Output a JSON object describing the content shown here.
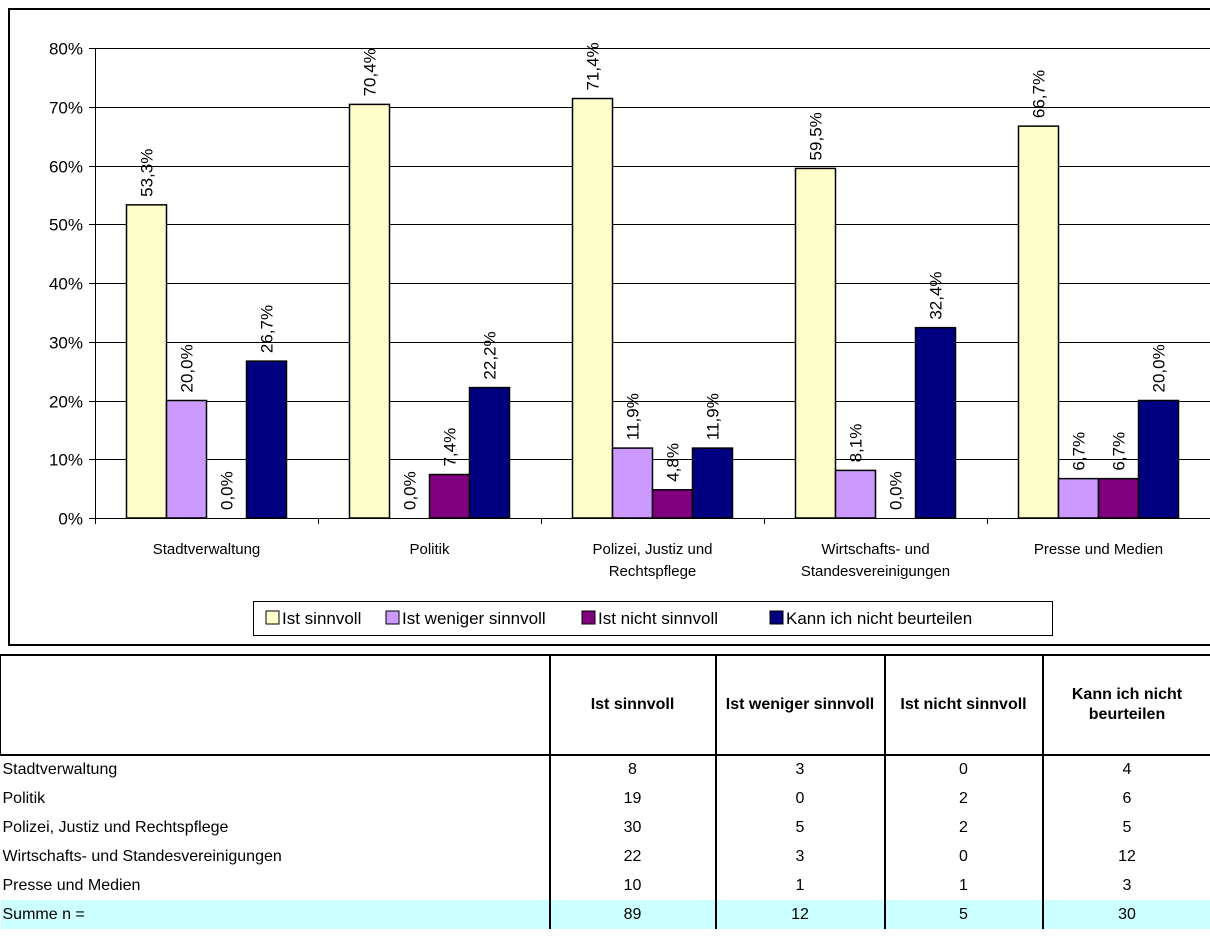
{
  "chart_data": {
    "type": "bar",
    "categories": [
      "Stadtverwaltung",
      "Politik",
      "Polizei, Justiz und Rechtspflege",
      "Wirtschafts- und Standesvereinigungen",
      "Presse und Medien"
    ],
    "category_label_lines": [
      [
        "Stadtverwaltung"
      ],
      [
        "Politik"
      ],
      [
        "Polizei, Justiz und",
        "Rechtspflege"
      ],
      [
        "Wirtschafts- und",
        "Standesvereinigungen"
      ],
      [
        "Presse und Medien"
      ]
    ],
    "series": [
      {
        "name": "Ist sinnvoll",
        "color": "#ffffcc",
        "values": [
          53.3,
          70.4,
          71.4,
          59.5,
          66.7
        ],
        "labels": [
          "53,3%",
          "70,4%",
          "71,4%",
          "59,5%",
          "66,7%"
        ]
      },
      {
        "name": "Ist weniger sinnvoll",
        "color": "#cc99ff",
        "values": [
          20.0,
          0.0,
          11.9,
          8.1,
          6.7
        ],
        "labels": [
          "20,0%",
          "0,0%",
          "11,9%",
          "8,1%",
          "6,7%"
        ]
      },
      {
        "name": "Ist nicht sinnvoll",
        "color": "#800080",
        "values": [
          0.0,
          7.4,
          4.8,
          0.0,
          6.7
        ],
        "labels": [
          "0,0%",
          "7,4%",
          "4,8%",
          "0,0%",
          "6,7%"
        ]
      },
      {
        "name": "Kann ich nicht beurteilen",
        "color": "#000080",
        "values": [
          26.7,
          22.2,
          11.9,
          32.4,
          20.0
        ],
        "labels": [
          "26,7%",
          "22,2%",
          "11,9%",
          "32,4%",
          "20,0%"
        ]
      }
    ],
    "yticks": [
      "0%",
      "10%",
      "20%",
      "30%",
      "40%",
      "50%",
      "60%",
      "70%",
      "80%"
    ],
    "ylim": [
      0,
      80
    ],
    "grid": true,
    "legend_position": "bottom"
  },
  "table": {
    "headers": [
      "",
      "Ist sinnvoll",
      "Ist weniger sinnvoll",
      "Ist nicht sinnvoll",
      "Kann ich nicht beurteilen"
    ],
    "rows": [
      {
        "label": "Stadtverwaltung",
        "values": [
          "8",
          "3",
          "0",
          "4"
        ]
      },
      {
        "label": "Politik",
        "values": [
          "19",
          "0",
          "2",
          "6"
        ]
      },
      {
        "label": "Polizei, Justiz und Rechtspflege",
        "values": [
          "30",
          "5",
          "2",
          "5"
        ]
      },
      {
        "label": "Wirtschafts- und Standesvereinigungen",
        "values": [
          "22",
          "3",
          "0",
          "12"
        ]
      },
      {
        "label": "Presse und Medien",
        "values": [
          "10",
          "1",
          "1",
          "3"
        ]
      }
    ],
    "sum_row": {
      "label": "Summe n =",
      "values": [
        "89",
        "12",
        "5",
        "30"
      ]
    }
  }
}
